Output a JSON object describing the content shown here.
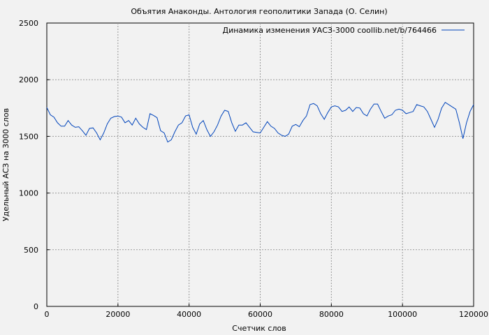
{
  "chart_data": {
    "type": "line",
    "title": "Объятия Анаконды. Антология геополитики Запада (О. Селин)",
    "xlabel": "Счетчик слов",
    "ylabel": "Удельный АСЗ на 3000 слов",
    "xlim": [
      0,
      120000
    ],
    "ylim": [
      0,
      2500
    ],
    "xticks": [
      "0",
      "20000",
      "40000",
      "60000",
      "80000",
      "100000",
      "120000"
    ],
    "yticks": [
      "0",
      "500",
      "1000",
      "1500",
      "2000",
      "2500"
    ],
    "grid": true,
    "legend_position": "top-right",
    "line_color": "#0044bb",
    "series": [
      {
        "name": "Динамика изменения УАСЗ-3000 coollib.net/b/764466",
        "x": [
          0,
          1000,
          2000,
          3000,
          4000,
          5000,
          6000,
          7000,
          8000,
          9000,
          10000,
          11000,
          12000,
          13000,
          14000,
          15000,
          16000,
          17000,
          18000,
          19000,
          20000,
          21000,
          22000,
          23000,
          24000,
          25000,
          26000,
          27000,
          28000,
          29000,
          30000,
          31000,
          32000,
          33000,
          34000,
          35000,
          36000,
          37000,
          38000,
          39000,
          40000,
          41000,
          42000,
          43000,
          44000,
          45000,
          46000,
          47000,
          48000,
          49000,
          50000,
          51000,
          52000,
          53000,
          54000,
          55000,
          56000,
          57000,
          58000,
          59000,
          60000,
          61000,
          62000,
          63000,
          64000,
          65000,
          66000,
          67000,
          68000,
          69000,
          70000,
          71000,
          72000,
          73000,
          74000,
          75000,
          76000,
          77000,
          78000,
          79000,
          80000,
          81000,
          82000,
          83000,
          84000,
          85000,
          86000,
          87000,
          88000,
          89000,
          90000,
          91000,
          92000,
          93000,
          94000,
          95000,
          96000,
          97000,
          98000,
          99000,
          100000,
          101000,
          102000,
          103000,
          104000,
          105000,
          106000,
          107000,
          108000,
          109000,
          110000,
          111000,
          112000,
          113000,
          114000,
          115000,
          116000,
          117000,
          118000,
          119000,
          120000
        ],
        "y": [
          1755,
          1690,
          1670,
          1620,
          1590,
          1590,
          1640,
          1600,
          1580,
          1585,
          1550,
          1510,
          1570,
          1575,
          1530,
          1470,
          1530,
          1610,
          1660,
          1675,
          1680,
          1670,
          1620,
          1640,
          1600,
          1660,
          1610,
          1580,
          1560,
          1700,
          1685,
          1665,
          1550,
          1530,
          1450,
          1470,
          1540,
          1600,
          1620,
          1680,
          1690,
          1580,
          1520,
          1610,
          1640,
          1560,
          1500,
          1540,
          1600,
          1680,
          1730,
          1720,
          1620,
          1545,
          1600,
          1600,
          1620,
          1580,
          1540,
          1535,
          1530,
          1580,
          1630,
          1590,
          1570,
          1530,
          1510,
          1500,
          1520,
          1590,
          1605,
          1585,
          1640,
          1680,
          1780,
          1790,
          1770,
          1700,
          1650,
          1710,
          1760,
          1770,
          1760,
          1720,
          1730,
          1760,
          1720,
          1755,
          1750,
          1700,
          1680,
          1740,
          1785,
          1785,
          1720,
          1660,
          1680,
          1690,
          1730,
          1740,
          1730,
          1700,
          1710,
          1720,
          1780,
          1770,
          1760,
          1720,
          1650,
          1580,
          1650,
          1750,
          1800,
          1780,
          1760,
          1740,
          1620,
          1480,
          1620,
          1720,
          1780
        ]
      }
    ]
  }
}
